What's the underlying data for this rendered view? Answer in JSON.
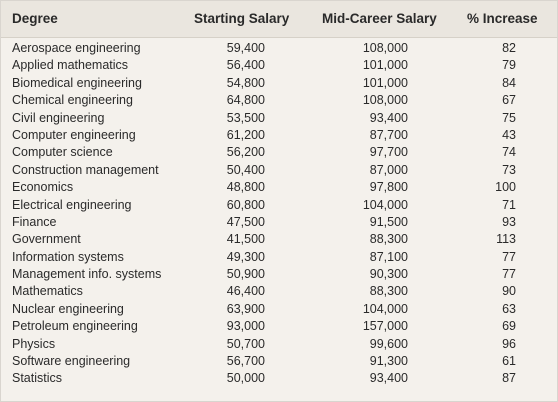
{
  "table": {
    "headers": {
      "degree": "Degree",
      "starting": "Starting Salary",
      "mid": "Mid-Career Salary",
      "increase": "% Increase"
    },
    "rows": [
      {
        "degree": "Aerospace engineering",
        "starting": "59,400",
        "mid": "108,000",
        "increase": "82"
      },
      {
        "degree": "Applied mathematics",
        "starting": "56,400",
        "mid": "101,000",
        "increase": "79"
      },
      {
        "degree": "Biomedical engineering",
        "starting": "54,800",
        "mid": "101,000",
        "increase": "84"
      },
      {
        "degree": "Chemical engineering",
        "starting": "64,800",
        "mid": "108,000",
        "increase": "67"
      },
      {
        "degree": "Civil engineering",
        "starting": "53,500",
        "mid": "93,400",
        "increase": "75"
      },
      {
        "degree": "Computer engineering",
        "starting": "61,200",
        "mid": "87,700",
        "increase": "43"
      },
      {
        "degree": "Computer science",
        "starting": "56,200",
        "mid": "97,700",
        "increase": "74"
      },
      {
        "degree": "Construction management",
        "starting": "50,400",
        "mid": "87,000",
        "increase": "73"
      },
      {
        "degree": "Economics",
        "starting": "48,800",
        "mid": "97,800",
        "increase": "100"
      },
      {
        "degree": "Electrical engineering",
        "starting": "60,800",
        "mid": "104,000",
        "increase": "71"
      },
      {
        "degree": "Finance",
        "starting": "47,500",
        "mid": "91,500",
        "increase": "93"
      },
      {
        "degree": "Government",
        "starting": "41,500",
        "mid": "88,300",
        "increase": "113"
      },
      {
        "degree": "Information systems",
        "starting": "49,300",
        "mid": "87,100",
        "increase": "77"
      },
      {
        "degree": "Management info. systems",
        "starting": "50,900",
        "mid": "90,300",
        "increase": "77"
      },
      {
        "degree": "Mathematics",
        "starting": "46,400",
        "mid": "88,300",
        "increase": "90"
      },
      {
        "degree": "Nuclear engineering",
        "starting": "63,900",
        "mid": "104,000",
        "increase": "63"
      },
      {
        "degree": "Petroleum engineering",
        "starting": "93,000",
        "mid": "157,000",
        "increase": "69"
      },
      {
        "degree": "Physics",
        "starting": "50,700",
        "mid": "99,600",
        "increase": "96"
      },
      {
        "degree": "Software engineering",
        "starting": "56,700",
        "mid": "91,300",
        "increase": "61"
      },
      {
        "degree": "Statistics",
        "starting": "50,000",
        "mid": "93,400",
        "increase": "87"
      }
    ]
  }
}
